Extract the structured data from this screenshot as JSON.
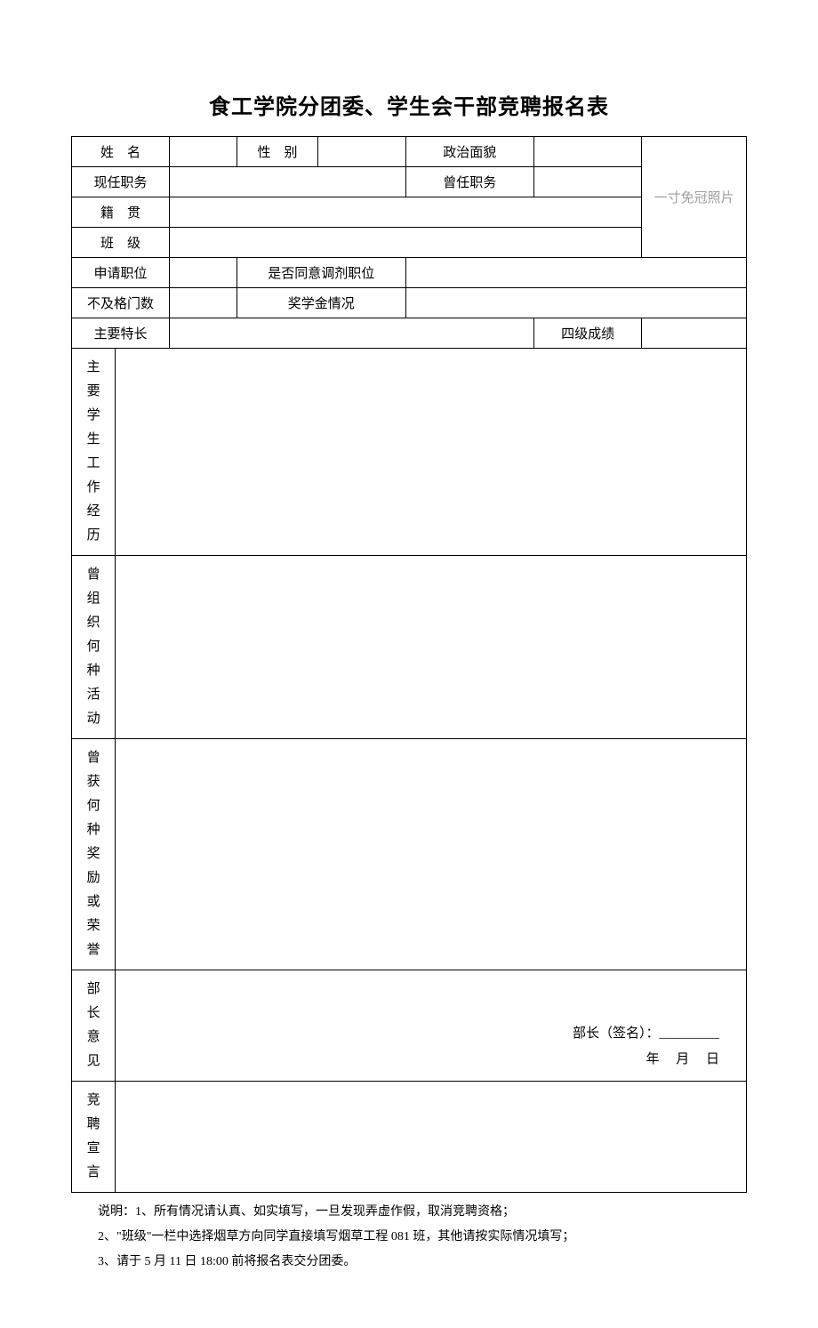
{
  "title": "食工学院分团委、学生会干部竞聘报名表",
  "labels": {
    "name": "姓　名",
    "gender": "性　别",
    "political": "政治面貌",
    "current_position": "现任职务",
    "former_position": "曾任职务",
    "native_place": "籍　贯",
    "class": "班　级",
    "apply_position": "申请职位",
    "transfer_agree": "是否同意调剂职位",
    "fail_count": "不及格门数",
    "scholarship": "奖学金情况",
    "specialty": "主要特长",
    "cet4": "四级成绩",
    "photo": "一寸免冠照片",
    "work_history": "主要<br>学生<br>工作<br>经历",
    "activities": "曾组<br>织何<br>种活<br>动",
    "awards": "曾获<br>何种<br>奖励<br>或荣<br>誉",
    "leader_opinion": "部长<br>意见",
    "declaration": "竞聘<br>宣言"
  },
  "opinion_sign": "部长（签名）：_________",
  "opinion_date": "年　 月　 日",
  "notes": {
    "line1": "说明：1、所有情况请认真、如实填写，一旦发现弄虚作假，取消竞聘资格；",
    "line2": "2、\"班级\"一栏中选择烟草方向同学直接填写烟草工程 081 班，其他请按实际情况填写；",
    "line3": "3、请于 5 月 11 日 18:00 前将报名表交分团委。"
  }
}
